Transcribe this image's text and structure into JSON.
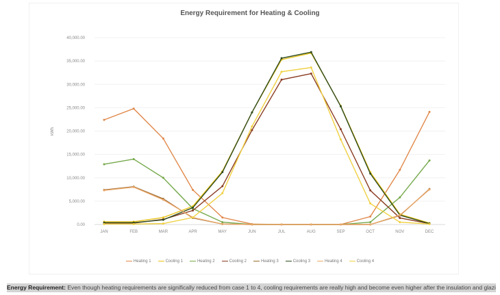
{
  "chart_data": {
    "type": "line",
    "title": "Energy Requirement for Heating & Cooling",
    "xlabel": "",
    "ylabel": "kWh",
    "ylim": [
      0,
      40000
    ],
    "yticks": [
      "0.00",
      "5,000.00",
      "10,000.00",
      "15,000.00",
      "20,000.00",
      "25,000.00",
      "30,000.00",
      "35,000.00",
      "40,000.00"
    ],
    "categories": [
      "JAN",
      "FEB",
      "MAR",
      "APR",
      "MAY",
      "JUN",
      "JUL",
      "AUG",
      "SEP",
      "OCT",
      "NOV",
      "DEC"
    ],
    "legend_position": "bottom",
    "grid": true,
    "series": [
      {
        "name": "Heating 1",
        "color": "#e0884a",
        "values": [
          22400,
          24800,
          18400,
          7400,
          1500,
          100,
          0,
          0,
          0,
          1700,
          11700,
          24100
        ]
      },
      {
        "name": "Cooling 1",
        "color": "#e8c21a",
        "values": [
          600,
          600,
          1500,
          3900,
          11400,
          24000,
          35300,
          36700,
          25400,
          11200,
          2200,
          300
        ]
      },
      {
        "name": "Heating 2",
        "color": "#74a84a",
        "values": [
          12900,
          14000,
          10000,
          3400,
          500,
          0,
          0,
          0,
          0,
          500,
          5800,
          13700
        ]
      },
      {
        "name": "Cooling 2",
        "color": "#8a3c22",
        "values": [
          300,
          300,
          1100,
          3000,
          8200,
          20200,
          31000,
          32300,
          20400,
          7300,
          1400,
          200
        ]
      },
      {
        "name": "Heating 3",
        "color": "#9a6a30",
        "values": [
          7400,
          8100,
          5500,
          1400,
          100,
          0,
          0,
          0,
          0,
          0,
          1900,
          7600
        ]
      },
      {
        "name": "Cooling 3",
        "color": "#2e4a1e",
        "values": [
          400,
          400,
          1000,
          3600,
          11200,
          24000,
          35600,
          36900,
          25300,
          10900,
          2000,
          200
        ]
      },
      {
        "name": "Heating 4",
        "color": "#eba86a",
        "values": [
          7300,
          8000,
          5300,
          1500,
          100,
          0,
          0,
          0,
          0,
          0,
          2000,
          7500
        ]
      },
      {
        "name": "Cooling 4",
        "color": "#f0d040",
        "values": [
          100,
          100,
          200,
          1500,
          6700,
          21000,
          32700,
          33600,
          18200,
          4500,
          500,
          100
        ]
      }
    ]
  },
  "caption": {
    "label": "Energy Requirement:",
    "text": " Even though heating requirements are significally reduced from case 1 to 4, cooling requirements are really high and become even higher after the insulation and glazing."
  }
}
